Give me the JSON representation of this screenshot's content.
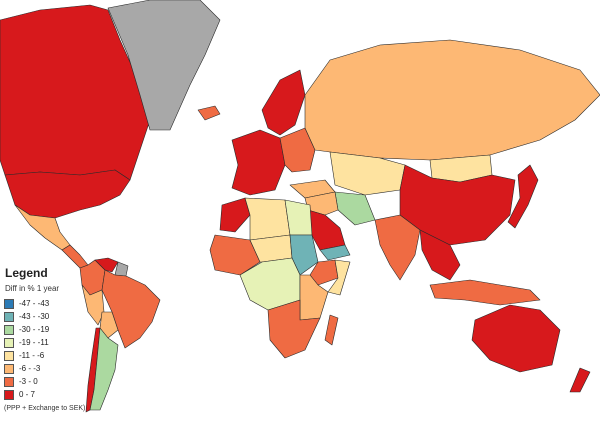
{
  "map": {
    "regions": [
      {
        "name": "canada-alaska-region",
        "bin": 7
      },
      {
        "name": "greenland-region",
        "bin": -1
      },
      {
        "name": "usa-region",
        "bin": 7
      },
      {
        "name": "mexico-region",
        "bin": 5
      },
      {
        "name": "central-america-region",
        "bin": 6
      },
      {
        "name": "colombia-region",
        "bin": 6
      },
      {
        "name": "venezuela-region",
        "bin": 7
      },
      {
        "name": "guianas-region",
        "bin": -1
      },
      {
        "name": "brazil-region",
        "bin": 6
      },
      {
        "name": "peru-region",
        "bin": 5
      },
      {
        "name": "bolivia-region",
        "bin": 5
      },
      {
        "name": "chile-region",
        "bin": 7
      },
      {
        "name": "argentina-region",
        "bin": 2
      },
      {
        "name": "iceland-region",
        "bin": 6
      },
      {
        "name": "scandinavia-region",
        "bin": 7
      },
      {
        "name": "western-europe-region",
        "bin": 7
      },
      {
        "name": "eastern-europe-region",
        "bin": 6
      },
      {
        "name": "russia-region",
        "bin": 5
      },
      {
        "name": "kazakhstan-region",
        "bin": 4
      },
      {
        "name": "mongolia-region",
        "bin": 4
      },
      {
        "name": "china-region",
        "bin": 7
      },
      {
        "name": "korea-japan-region",
        "bin": 7
      },
      {
        "name": "turkey-region",
        "bin": 5
      },
      {
        "name": "iran-region",
        "bin": 2
      },
      {
        "name": "middle-east-region",
        "bin": 5
      },
      {
        "name": "arabia-region",
        "bin": 7
      },
      {
        "name": "yemen-region",
        "bin": 1
      },
      {
        "name": "india-region",
        "bin": 6
      },
      {
        "name": "southeast-asia-region",
        "bin": 7
      },
      {
        "name": "indonesia-region",
        "bin": 6
      },
      {
        "name": "australia-region",
        "bin": 7
      },
      {
        "name": "new-zealand-region",
        "bin": 7
      },
      {
        "name": "morocco-region",
        "bin": 7
      },
      {
        "name": "algeria-libya-region",
        "bin": 4
      },
      {
        "name": "egypt-region",
        "bin": 3
      },
      {
        "name": "west-africa-region",
        "bin": 6
      },
      {
        "name": "sahel-region",
        "bin": 4
      },
      {
        "name": "sudan-region",
        "bin": 1
      },
      {
        "name": "ethiopia-region",
        "bin": 6
      },
      {
        "name": "somalia-region",
        "bin": 4
      },
      {
        "name": "central-africa-region",
        "bin": 3
      },
      {
        "name": "east-africa-region",
        "bin": 5
      },
      {
        "name": "southern-africa-region",
        "bin": 6
      },
      {
        "name": "madagascar-region",
        "bin": 6
      }
    ]
  },
  "legend": {
    "title": "Legend",
    "subtitle": "Diff in % 1 year",
    "note": "(PPP + Exchange to SEK)",
    "nodata_color": "#a8a8a8",
    "items": [
      {
        "label": "-47 - -43",
        "color": "#2c7bb6"
      },
      {
        "label": "-43 - -30",
        "color": "#6fb3b6"
      },
      {
        "label": "-30 - -19",
        "color": "#abd9a0"
      },
      {
        "label": "-19 - -11",
        "color": "#e6f2b6"
      },
      {
        "label": "-11 - -6",
        "color": "#fee3a0"
      },
      {
        "label": "-6 - -3",
        "color": "#fdb874"
      },
      {
        "label": "-3 - 0",
        "color": "#ef6b43"
      },
      {
        "label": "0 - 7",
        "color": "#d7191c"
      }
    ]
  }
}
